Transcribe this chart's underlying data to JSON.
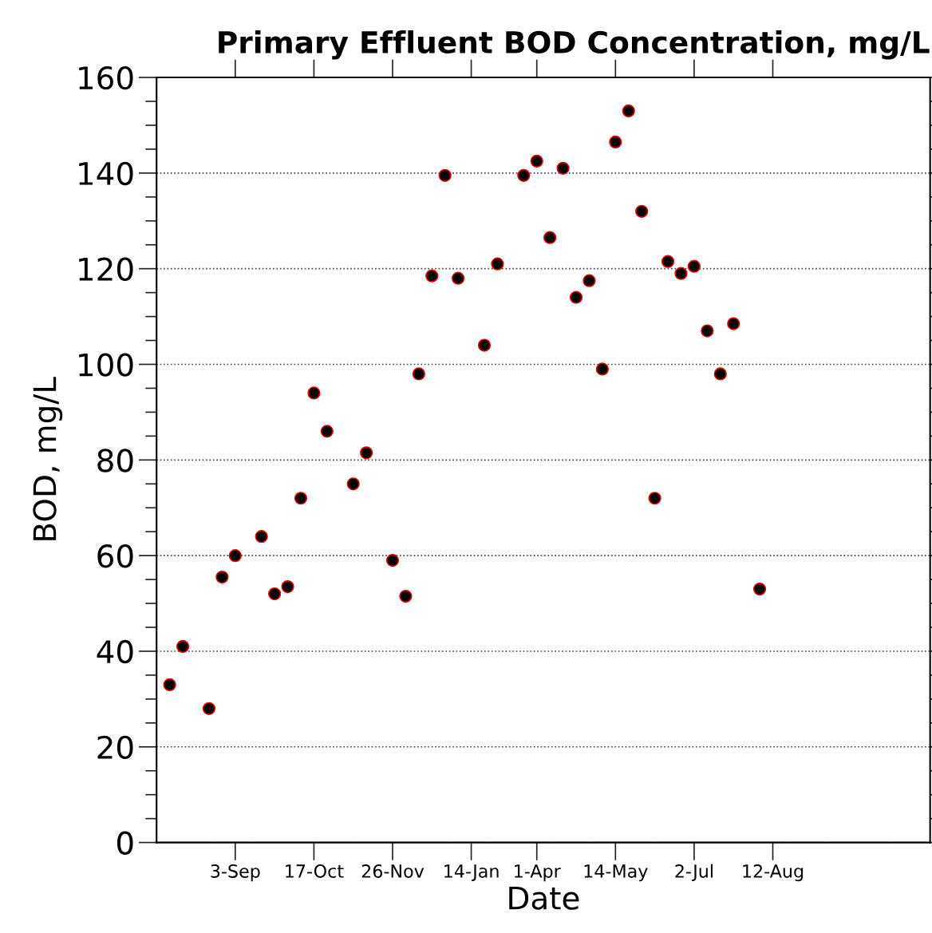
{
  "chart_data": {
    "type": "scatter",
    "title": "Primary Effluent BOD Concentration, mg/L",
    "xlabel": "Date",
    "ylabel": "BOD, mg/L",
    "categories": [
      null,
      null,
      null,
      null,
      null,
      null,
      "3-Sep",
      null,
      null,
      null,
      null,
      null,
      "17-Oct",
      null,
      null,
      null,
      null,
      null,
      "26-Nov",
      null,
      null,
      null,
      null,
      null,
      "14-Jan",
      null,
      null,
      null,
      null,
      "1-Apr",
      null,
      null,
      null,
      null,
      null,
      "14-May",
      null,
      null,
      null,
      null,
      null,
      "2-Jul",
      null,
      null,
      null,
      null,
      null,
      "12-Aug",
      null,
      null,
      null,
      null,
      null,
      null,
      null,
      null,
      null,
      null,
      null,
      null
    ],
    "values": [
      null,
      33,
      41,
      null,
      28,
      55.5,
      60,
      null,
      64,
      52,
      53.5,
      72,
      94,
      86,
      null,
      75,
      81.5,
      null,
      59,
      51.5,
      98,
      118.5,
      139.5,
      118,
      null,
      104,
      121,
      null,
      139.5,
      142.5,
      126.5,
      141,
      114,
      117.5,
      99,
      146.5,
      153,
      132,
      72,
      121.5,
      119,
      120.5,
      107,
      98,
      108.5,
      null,
      53,
      null,
      null,
      null,
      null,
      null,
      null,
      null,
      null,
      null,
      null,
      null,
      null,
      null
    ],
    "color": "#000000",
    "marker": "circle",
    "ylim": [
      0,
      160
    ],
    "yticks": [
      0,
      {
        "value": 5,
        "label": null
      },
      {
        "value": 10,
        "label": null
      },
      {
        "value": 15,
        "label": null
      },
      20,
      {
        "value": 25,
        "label": null
      },
      {
        "value": 30,
        "label": null
      },
      {
        "value": 35,
        "label": null
      },
      40,
      {
        "value": 45,
        "label": null
      },
      {
        "value": 50,
        "label": null
      },
      {
        "value": 55,
        "label": null
      },
      60,
      {
        "value": 65,
        "label": null
      },
      {
        "value": 70,
        "label": null
      },
      {
        "value": 75,
        "label": null
      },
      80,
      {
        "value": 85,
        "label": null
      },
      {
        "value": 90,
        "label": null
      },
      {
        "value": 95,
        "label": null
      },
      100,
      {
        "value": 105,
        "label": null
      },
      {
        "value": 110,
        "label": null
      },
      {
        "value": 115,
        "label": null
      },
      120,
      {
        "value": 125,
        "label": null
      },
      {
        "value": 130,
        "label": null
      },
      {
        "value": 135,
        "label": null
      },
      140,
      {
        "value": 145,
        "label": null
      },
      {
        "value": 150,
        "label": null
      },
      {
        "value": 155,
        "label": null
      },
      160
    ],
    "grid": "y"
  }
}
